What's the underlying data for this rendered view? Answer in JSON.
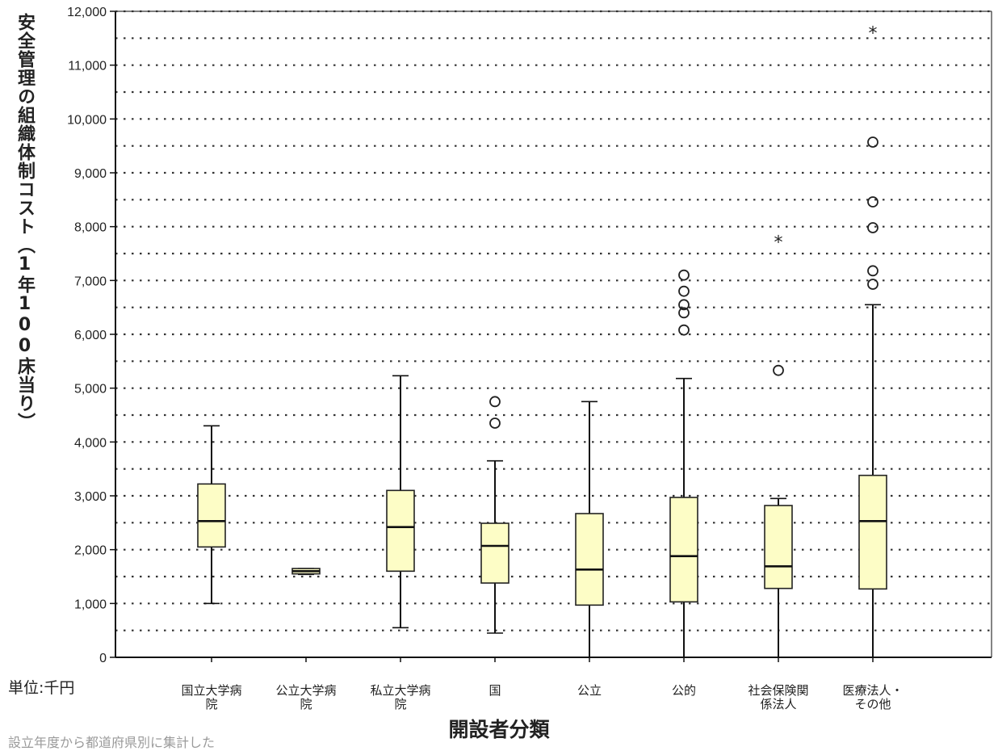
{
  "chart_data": {
    "type": "box",
    "ylabel": "安全管理の組織体制コスト（1年100床当り）",
    "xlabel": "開設者分類",
    "unit_label": "単位:千円",
    "ylim": [
      0,
      12000
    ],
    "yticks": [
      "0",
      "1,000",
      "2,000",
      "3,000",
      "4,000",
      "5,000",
      "6,000",
      "7,000",
      "8,000",
      "9,000",
      "10,000",
      "11,000",
      "12,000"
    ],
    "grid": "dotted, every 500",
    "colors": {
      "box_fill": "#fdfdc6",
      "box_stroke": "#222222",
      "grid": "#333333"
    },
    "categories": [
      {
        "label": [
          "国立大学病",
          "院"
        ],
        "min": 1000,
        "q1": 2050,
        "median": 2530,
        "q3": 3220,
        "max": 4300,
        "outliers": [],
        "extremes": []
      },
      {
        "label": [
          "公立大学病",
          "院"
        ],
        "min": 1540,
        "q1": 1550,
        "median": 1600,
        "q3": 1650,
        "max": 1650,
        "outliers": [],
        "extremes": []
      },
      {
        "label": [
          "私立大学病",
          "院"
        ],
        "min": 550,
        "q1": 1600,
        "median": 2420,
        "q3": 3100,
        "max": 5230,
        "outliers": [],
        "extremes": []
      },
      {
        "label": [
          "国"
        ],
        "min": 450,
        "q1": 1380,
        "median": 2070,
        "q3": 2490,
        "max": 3650,
        "outliers": [
          4350,
          4750
        ],
        "extremes": []
      },
      {
        "label": [
          "公立"
        ],
        "min": 0,
        "q1": 970,
        "median": 1630,
        "q3": 2670,
        "max": 4750,
        "outliers": [],
        "extremes": []
      },
      {
        "label": [
          "公的"
        ],
        "min": 0,
        "q1": 1030,
        "median": 1880,
        "q3": 2970,
        "max": 5180,
        "outliers": [
          6080,
          6400,
          6550,
          6800,
          7100
        ],
        "extremes": []
      },
      {
        "label": [
          "社会保険関",
          "係法人"
        ],
        "min": 0,
        "q1": 1280,
        "median": 1690,
        "q3": 2820,
        "max": 2950,
        "outliers": [
          5330
        ],
        "extremes": [
          7730
        ]
      },
      {
        "label": [
          "医療法人・",
          "その他"
        ],
        "min": 0,
        "q1": 1270,
        "median": 2530,
        "q3": 3380,
        "max": 6550,
        "outliers": [
          6930,
          7180,
          7980,
          8460,
          9570
        ],
        "extremes": [
          11620
        ]
      }
    ]
  },
  "footnote": "設立年度から都道府県別に集計した"
}
